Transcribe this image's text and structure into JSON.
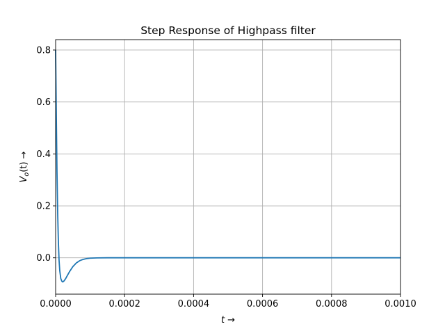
{
  "chart_data": {
    "type": "line",
    "title": "Step Response of Highpass filter",
    "xlabel": "t →",
    "ylabel": "V_o(t) →",
    "ylabel_main": "V",
    "ylabel_sub": "o",
    "ylabel_rest": "(t) →",
    "xlim": [
      0,
      0.001
    ],
    "ylim": [
      -0.14,
      0.84
    ],
    "xticks": [
      0,
      0.0002,
      0.0004,
      0.0006,
      0.0008,
      0.001
    ],
    "xtick_labels": [
      "0.0000",
      "0.0002",
      "0.0004",
      "0.0006",
      "0.0008",
      "0.0010"
    ],
    "yticks": [
      0,
      0.2,
      0.4,
      0.6,
      0.8
    ],
    "ytick_labels": [
      "0.0",
      "0.2",
      "0.4",
      "0.6",
      "0.8"
    ],
    "grid": true,
    "series": [
      {
        "color": "#1f77b4",
        "x": [
          0,
          2e-06,
          4e-06,
          6e-06,
          8e-06,
          1e-05,
          1.2e-05,
          1.5e-05,
          1.8e-05,
          2e-05,
          2.2e-05,
          2.5e-05,
          3e-05,
          3.5e-05,
          4e-05,
          5e-05,
          6e-05,
          7e-05,
          8e-05,
          9e-05,
          0.0001,
          0.00012,
          0.00015,
          0.0002,
          0.0003,
          0.0004,
          0.0005,
          0.0006,
          0.0007,
          0.0008,
          0.0009,
          0.001
        ],
        "y": [
          0.8,
          0.55,
          0.33,
          0.17,
          0.06,
          -0.01,
          -0.05,
          -0.08,
          -0.09,
          -0.093,
          -0.092,
          -0.088,
          -0.078,
          -0.066,
          -0.054,
          -0.034,
          -0.02,
          -0.011,
          -0.006,
          -0.003,
          -0.0015,
          -0.0004,
          0,
          0,
          0,
          0,
          0,
          0,
          0,
          0,
          0,
          0
        ]
      }
    ]
  }
}
